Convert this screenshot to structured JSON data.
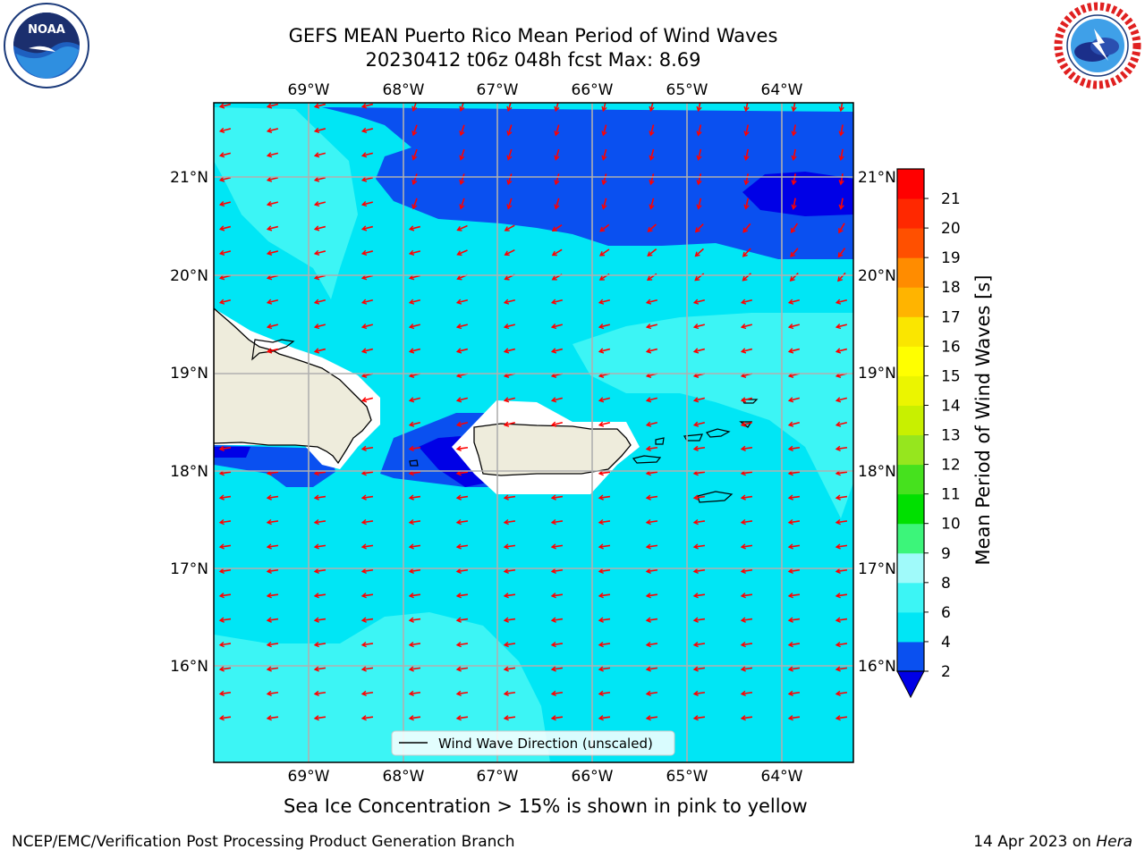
{
  "header": {
    "title_line1": "GEFS MEAN Puerto Rico Mean Period of Wind Waves",
    "title_line2": "20230412 t06z 048h fcst   Max: 8.69"
  },
  "map": {
    "lon_labels": [
      "69°W",
      "68°W",
      "67°W",
      "66°W",
      "65°W",
      "64°W"
    ],
    "lat_labels": [
      "21°N",
      "20°N",
      "19°N",
      "18°N",
      "17°N",
      "16°N"
    ],
    "legend_label": "Wind Wave Direction (unscaled)",
    "arrow_color": "#ff0000",
    "land_color": "#eeecdc"
  },
  "colorbar": {
    "label": "Mean Period of Wind Waves [s]",
    "ticks": [
      "2",
      "4",
      "6",
      "8",
      "9",
      "10",
      "11",
      "12",
      "13",
      "14",
      "15",
      "16",
      "17",
      "18",
      "19",
      "20",
      "21"
    ],
    "colors": [
      "#0a50f0",
      "#00e6f5",
      "#3cf5f5",
      "#a0fafa",
      "#3cf57a",
      "#00e000",
      "#46e11e",
      "#96e61e",
      "#c8f000",
      "#ebf500",
      "#ffff00",
      "#fae600",
      "#ffb400",
      "#ff8c00",
      "#ff5000",
      "#ff2800",
      "#ff0000"
    ],
    "under_color": "#0000e6"
  },
  "caption": "Sea Ice Concentration > 15% is shown in pink to yellow",
  "footer": {
    "left": "NCEP/EMC/Verification Post Processing Product Generation Branch",
    "right_prefix": "14 Apr 2023 on ",
    "right_host": "Hera"
  }
}
